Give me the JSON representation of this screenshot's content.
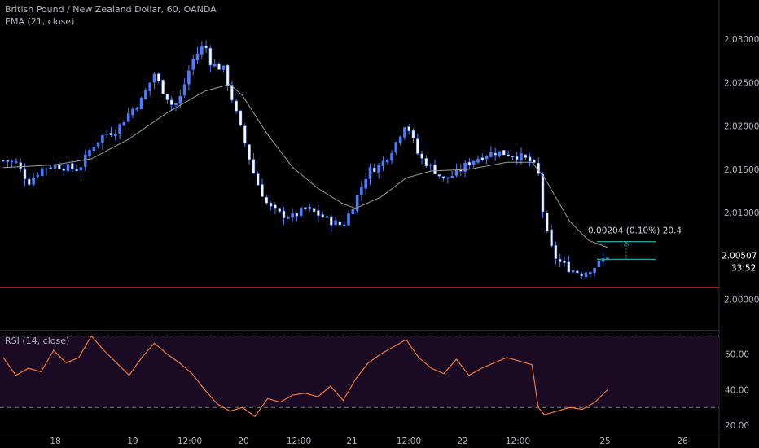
{
  "legend": {
    "title": "British Pound / New Zealand Dollar, 60, OANDA",
    "ema": "EMA (21, close)",
    "rsi": "RSI (14, close)"
  },
  "measure": {
    "label": "0.00204 (0.10%) 20.4"
  },
  "price_tag": {
    "value": "2.00507",
    "countdown": "33:52"
  },
  "colors": {
    "background": "#000000",
    "candle": "#4a7cff",
    "candle_bright": "#ffffff",
    "ema": "#9b9b9b",
    "rsi": "#f0763c",
    "rsi_band": "#1a0a24",
    "horizontal_line": "#c0392b",
    "measure": "#1ea5a0",
    "axis_text": "#b2b5be"
  },
  "chart_data": [
    {
      "type": "candlestick",
      "title": "British Pound / New Zealand Dollar, 60, OANDA",
      "x_tick_labels": [
        "18",
        "19",
        "12:00",
        "20",
        "12:00",
        "21",
        "12:00",
        "22",
        "12:00",
        "25",
        "26"
      ],
      "y_tick_labels": [
        "2.03000",
        "2.02500",
        "2.02000",
        "2.01500",
        "2.01000",
        "2.00000"
      ],
      "ylim": [
        1.9965,
        2.0345
      ],
      "horizontal_line": 2.0014,
      "current_price": 2.00507,
      "ema_label": "EMA (21, close)",
      "close_path": [
        [
          0,
          2.016
        ],
        [
          2,
          2.0158
        ],
        [
          4,
          2.0135
        ],
        [
          6,
          2.015
        ],
        [
          8,
          2.0155
        ],
        [
          10,
          2.0152
        ],
        [
          12,
          2.015
        ],
        [
          14,
          2.0175
        ],
        [
          16,
          2.019
        ],
        [
          18,
          2.0195
        ],
        [
          20,
          2.0215
        ],
        [
          22,
          2.023
        ],
        [
          24,
          2.026
        ],
        [
          25,
          2.0245
        ],
        [
          27,
          2.0222
        ],
        [
          28,
          2.023
        ],
        [
          30,
          2.0275
        ],
        [
          32,
          2.0295
        ],
        [
          33,
          2.0272
        ],
        [
          35,
          2.0265
        ],
        [
          37,
          2.0215
        ],
        [
          39,
          2.0165
        ],
        [
          40,
          2.014
        ],
        [
          42,
          2.0108
        ],
        [
          44,
          2.0098
        ],
        [
          46,
          2.0095
        ],
        [
          48,
          2.0105
        ],
        [
          50,
          2.0098
        ],
        [
          52,
          2.009
        ],
        [
          54,
          2.0085
        ],
        [
          56,
          2.0115
        ],
        [
          58,
          2.0148
        ],
        [
          60,
          2.0155
        ],
        [
          62,
          2.0175
        ],
        [
          64,
          2.0205
        ],
        [
          66,
          2.0165
        ],
        [
          68,
          2.0152
        ],
        [
          70,
          2.0138
        ],
        [
          72,
          2.0145
        ],
        [
          74,
          2.0158
        ],
        [
          76,
          2.0165
        ],
        [
          78,
          2.017
        ],
        [
          80,
          2.0168
        ],
        [
          82,
          2.0165
        ],
        [
          84,
          2.0158
        ],
        [
          85,
          2.0145
        ],
        [
          86,
          2.0085
        ],
        [
          87,
          2.006
        ],
        [
          88,
          2.0045
        ],
        [
          90,
          2.0035
        ],
        [
          92,
          2.003
        ],
        [
          94,
          2.0038
        ],
        [
          96,
          2.005
        ]
      ],
      "ema_path": [
        [
          0,
          2.0152
        ],
        [
          8,
          2.0155
        ],
        [
          14,
          2.0162
        ],
        [
          20,
          2.0185
        ],
        [
          26,
          2.0215
        ],
        [
          32,
          2.024
        ],
        [
          36,
          2.0248
        ],
        [
          38,
          2.0235
        ],
        [
          42,
          2.019
        ],
        [
          46,
          2.0152
        ],
        [
          50,
          2.0128
        ],
        [
          54,
          2.011
        ],
        [
          56,
          2.0105
        ],
        [
          60,
          2.0118
        ],
        [
          64,
          2.014
        ],
        [
          68,
          2.0148
        ],
        [
          74,
          2.015
        ],
        [
          80,
          2.0158
        ],
        [
          84,
          2.0158
        ],
        [
          86,
          2.014
        ],
        [
          88,
          2.0115
        ],
        [
          90,
          2.009
        ],
        [
          93,
          2.0068
        ],
        [
          96,
          2.006
        ]
      ],
      "measurement": {
        "from": 2.00463,
        "to": 2.00667,
        "label": "0.00204 (0.10%) 20.4"
      }
    },
    {
      "type": "line",
      "title": "RSI (14, close)",
      "y_tick_labels": [
        "60.00",
        "40.00",
        "20.00"
      ],
      "ylim": [
        16,
        73
      ],
      "bands": [
        30,
        70
      ],
      "x": [
        0,
        2,
        4,
        6,
        8,
        10,
        12,
        14,
        16,
        18,
        20,
        22,
        24,
        26,
        28,
        30,
        32,
        34,
        36,
        38,
        40,
        42,
        44,
        46,
        48,
        50,
        52,
        54,
        56,
        58,
        60,
        62,
        64,
        66,
        68,
        70,
        72,
        74,
        76,
        78,
        80,
        82,
        84,
        85,
        86,
        88,
        90,
        92,
        94,
        96
      ],
      "values": [
        58,
        48,
        52,
        50,
        62,
        55,
        58,
        70,
        62,
        55,
        48,
        58,
        66,
        60,
        55,
        49,
        40,
        32,
        28,
        30,
        25,
        35,
        33,
        37,
        38,
        36,
        42,
        34,
        46,
        55,
        60,
        64,
        68,
        58,
        52,
        49,
        57,
        48,
        52,
        55,
        58,
        56,
        54,
        30,
        26,
        28,
        30,
        29,
        33,
        40
      ]
    }
  ]
}
